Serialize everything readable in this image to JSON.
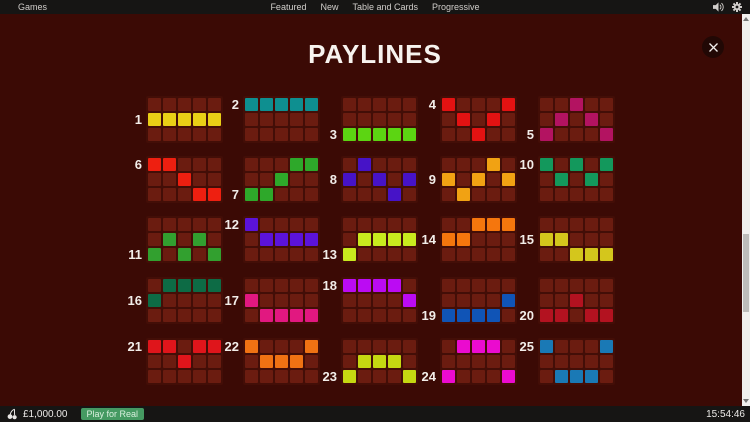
{
  "top_bar": {
    "left_item": "Games",
    "menu_items": [
      "Featured",
      "New",
      "Table and Cards",
      "Progressive"
    ],
    "icons": [
      "speaker-icon",
      "gear-icon"
    ]
  },
  "modal": {
    "title": "PAYLINES"
  },
  "paylines": {
    "reels": 5,
    "rows": 3,
    "row_key": "0=top, 1=middle, 2=bottom",
    "unlit_cell_color": "#6b1c10",
    "items": [
      {
        "number": 1,
        "color": "#e9cf16",
        "pattern": [
          1,
          1,
          1,
          1,
          1
        ]
      },
      {
        "number": 2,
        "color": "#0e8f90",
        "pattern": [
          0,
          0,
          0,
          0,
          0
        ]
      },
      {
        "number": 3,
        "color": "#5cd512",
        "pattern": [
          2,
          2,
          2,
          2,
          2
        ]
      },
      {
        "number": 4,
        "color": "#e31212",
        "pattern": [
          0,
          1,
          2,
          1,
          0
        ]
      },
      {
        "number": 5,
        "color": "#b31361",
        "pattern": [
          2,
          1,
          0,
          1,
          2
        ]
      },
      {
        "number": 6,
        "color": "#ee1f10",
        "pattern": [
          0,
          0,
          1,
          2,
          2
        ]
      },
      {
        "number": 7,
        "color": "#2ea82a",
        "pattern": [
          2,
          2,
          1,
          0,
          0
        ]
      },
      {
        "number": 8,
        "color": "#4613c7",
        "pattern": [
          1,
          0,
          1,
          2,
          1
        ]
      },
      {
        "number": 9,
        "color": "#f1a213",
        "pattern": [
          1,
          2,
          1,
          0,
          1
        ]
      },
      {
        "number": 10,
        "color": "#13985c",
        "pattern": [
          0,
          1,
          0,
          1,
          0
        ]
      },
      {
        "number": 11,
        "color": "#32a02f",
        "pattern": [
          2,
          1,
          2,
          1,
          2
        ]
      },
      {
        "number": 12,
        "color": "#5b13d9",
        "pattern": [
          0,
          1,
          1,
          1,
          1
        ]
      },
      {
        "number": 13,
        "color": "#c8ea1e",
        "pattern": [
          2,
          1,
          1,
          1,
          1
        ]
      },
      {
        "number": 14,
        "color": "#f5760d",
        "pattern": [
          1,
          1,
          0,
          0,
          0
        ]
      },
      {
        "number": 15,
        "color": "#d4c61c",
        "pattern": [
          1,
          1,
          2,
          2,
          2
        ]
      },
      {
        "number": 16,
        "color": "#0d6b45",
        "pattern": [
          1,
          0,
          0,
          0,
          0
        ]
      },
      {
        "number": 17,
        "color": "#e11880",
        "pattern": [
          1,
          2,
          2,
          2,
          2
        ]
      },
      {
        "number": 18,
        "color": "#bb0bf3",
        "pattern": [
          0,
          0,
          0,
          0,
          1
        ]
      },
      {
        "number": 19,
        "color": "#1054b6",
        "pattern": [
          2,
          2,
          2,
          2,
          1
        ]
      },
      {
        "number": 20,
        "color": "#b31220",
        "pattern": [
          2,
          2,
          1,
          2,
          2
        ]
      },
      {
        "number": 21,
        "color": "#df151b",
        "pattern": [
          0,
          0,
          1,
          0,
          0
        ]
      },
      {
        "number": 22,
        "color": "#f07213",
        "pattern": [
          0,
          1,
          1,
          1,
          0
        ]
      },
      {
        "number": 23,
        "color": "#c5d811",
        "pattern": [
          2,
          1,
          1,
          1,
          2
        ]
      },
      {
        "number": 24,
        "color": "#eb0bcf",
        "pattern": [
          2,
          0,
          0,
          0,
          2
        ]
      },
      {
        "number": 25,
        "color": "#1a79b5",
        "pattern": [
          0,
          2,
          2,
          2,
          0
        ]
      }
    ]
  },
  "bottom_bar": {
    "balance": "£1,000.00",
    "play_button_label": "Play for Real",
    "time": "15:54:46"
  }
}
